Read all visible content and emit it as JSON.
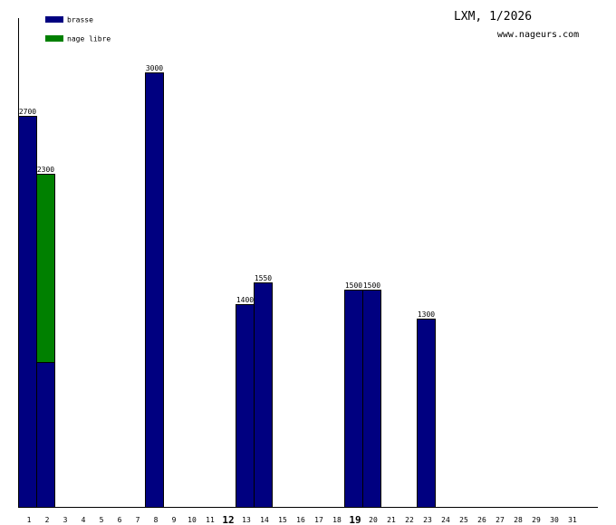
{
  "chart_data": {
    "type": "bar",
    "title": "LXM, 1/2026",
    "subtitle": "www.nageurs.com",
    "xlabel": "",
    "ylabel": "",
    "ylim": [
      0,
      3300
    ],
    "grid": false,
    "stacked": true,
    "legend_placement": "top-left",
    "categories": [
      "1",
      "2",
      "3",
      "4",
      "5",
      "6",
      "7",
      "8",
      "9",
      "10",
      "11",
      "12",
      "13",
      "14",
      "15",
      "16",
      "17",
      "18",
      "19",
      "20",
      "21",
      "22",
      "23",
      "24",
      "25",
      "26",
      "27",
      "28",
      "29",
      "30",
      "31"
    ],
    "bold_categories": [
      "12",
      "19"
    ],
    "series": [
      {
        "name": "brasse",
        "color": "#000080",
        "values": [
          2700,
          1000,
          0,
          0,
          0,
          0,
          0,
          3000,
          0,
          0,
          0,
          0,
          1400,
          1550,
          0,
          0,
          0,
          0,
          1500,
          1500,
          0,
          0,
          1300,
          0,
          0,
          0,
          0,
          0,
          0,
          0,
          0
        ]
      },
      {
        "name": "nage libre",
        "color": "#008000",
        "values": [
          0,
          1300,
          0,
          0,
          0,
          0,
          0,
          0,
          0,
          0,
          0,
          0,
          0,
          0,
          0,
          0,
          0,
          0,
          0,
          0,
          0,
          0,
          0,
          0,
          0,
          0,
          0,
          0,
          0,
          0,
          0
        ]
      }
    ],
    "totals": [
      2700,
      2300,
      0,
      0,
      0,
      0,
      0,
      3000,
      0,
      0,
      0,
      0,
      1400,
      1550,
      0,
      0,
      0,
      0,
      1500,
      1500,
      0,
      0,
      1300,
      0,
      0,
      0,
      0,
      0,
      0,
      0,
      0
    ]
  }
}
